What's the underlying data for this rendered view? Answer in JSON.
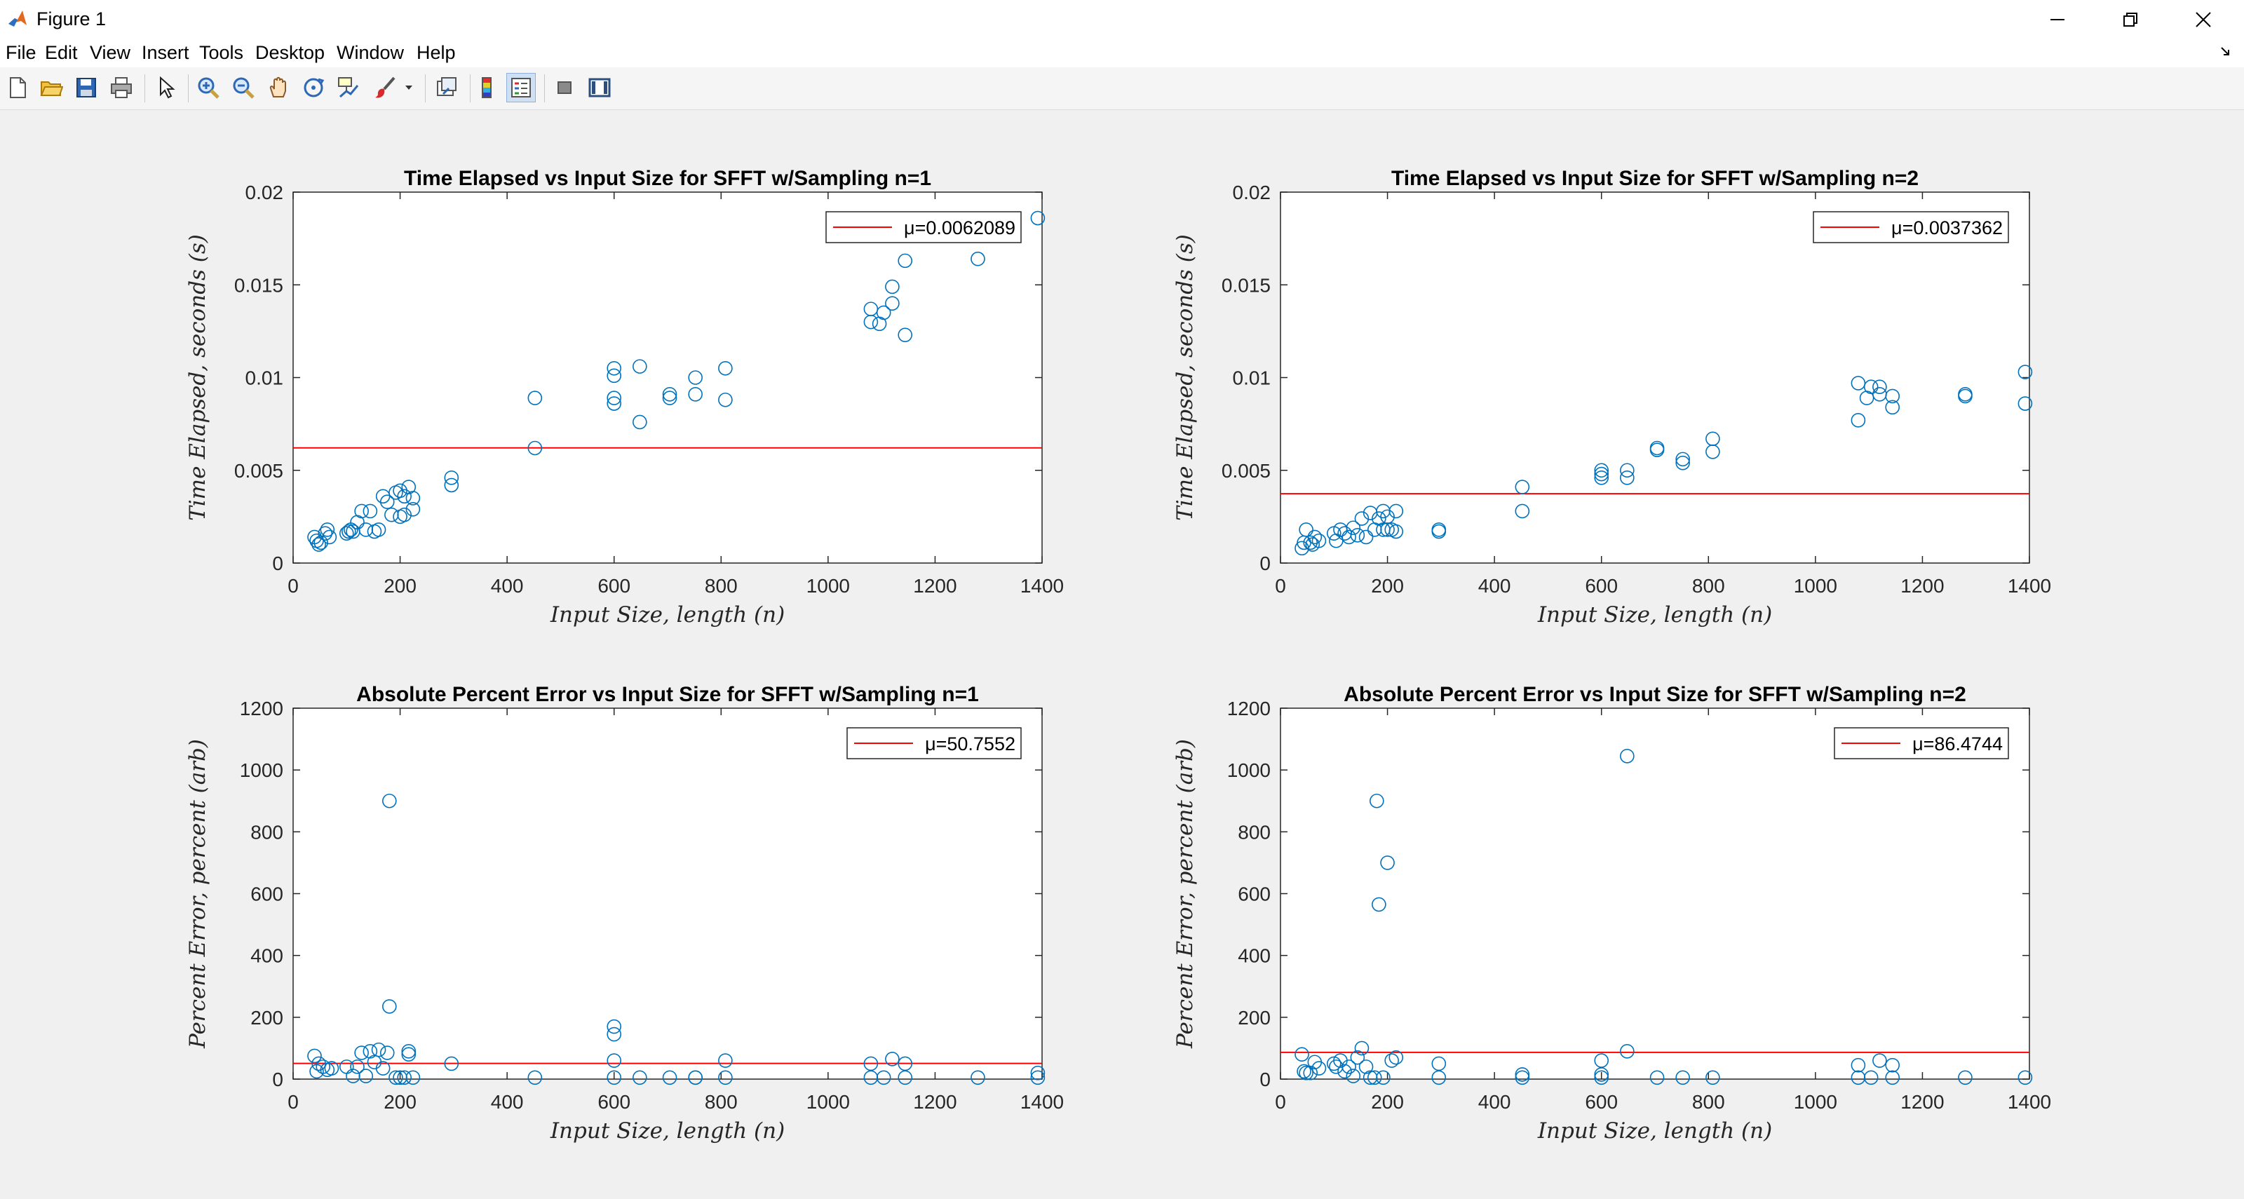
{
  "window": {
    "title": "Figure 1",
    "icon": "matlab-icon"
  },
  "window_controls": [
    "minimize-icon",
    "restore-icon",
    "close-icon"
  ],
  "menu": [
    "File",
    "Edit",
    "View",
    "Insert",
    "Tools",
    "Desktop",
    "Window",
    "Help"
  ],
  "toolbar": [
    "new-figure-icon",
    "open-file-icon",
    "save-icon",
    "print-icon",
    "edit-plot-icon",
    "zoom-in-icon",
    "zoom-out-icon",
    "pan-icon",
    "rotate-3d-icon",
    "data-cursor-icon",
    "brush-icon",
    "link-plot-icon",
    "colorbar-icon",
    "legend-icon",
    "hide-plot-tools-icon",
    "show-plot-tools-icon"
  ],
  "colors": {
    "marker": "#0072bd",
    "mean_line": "#ff0000",
    "figure_bg": "#f0f0f0"
  },
  "chart_data": [
    {
      "type": "scatter",
      "title": "Time Elapsed vs Input Size for SFFT w/Sampling n=1",
      "xlabel": "Input Size, length (n)",
      "ylabel": "Time Elapsed, seconds (s)",
      "xlim": [
        0,
        1400
      ],
      "ylim": [
        0,
        0.02
      ],
      "xticks": [
        0,
        200,
        400,
        600,
        800,
        1000,
        1200,
        1400
      ],
      "yticks": [
        0,
        0.005,
        0.01,
        0.015,
        0.02
      ],
      "ytick_labels": [
        "0",
        "0.005",
        "0.01",
        "0.015",
        "0.02"
      ],
      "mean": 0.0062089,
      "legend": {
        "label": "μ=0.0062089",
        "position": "top-right"
      },
      "x": [
        40,
        44,
        48,
        52,
        60,
        64,
        68,
        100,
        104,
        108,
        112,
        120,
        128,
        136,
        144,
        152,
        160,
        168,
        176,
        184,
        192,
        200,
        200,
        208,
        208,
        216,
        224,
        224,
        296,
        296,
        452,
        452,
        600,
        600,
        600,
        600,
        648,
        648,
        704,
        704,
        752,
        752,
        808,
        808,
        1080,
        1080,
        1096,
        1104,
        1120,
        1120,
        1144,
        1144,
        1280,
        1392
      ],
      "y": [
        0.0014,
        0.0012,
        0.001,
        0.0011,
        0.0016,
        0.0018,
        0.0014,
        0.0016,
        0.0017,
        0.0018,
        0.0017,
        0.0022,
        0.0028,
        0.0018,
        0.0028,
        0.0017,
        0.0018,
        0.0036,
        0.0033,
        0.0026,
        0.0038,
        0.0039,
        0.0025,
        0.0036,
        0.0026,
        0.0041,
        0.0035,
        0.0029,
        0.0046,
        0.0042,
        0.0089,
        0.0062,
        0.0105,
        0.0101,
        0.0089,
        0.0086,
        0.0106,
        0.0076,
        0.0091,
        0.0089,
        0.01,
        0.0091,
        0.0105,
        0.0088,
        0.0137,
        0.013,
        0.0129,
        0.0135,
        0.0149,
        0.014,
        0.0163,
        0.0123,
        0.0164,
        0.0186
      ]
    },
    {
      "type": "scatter",
      "title": "Time Elapsed vs Input Size for SFFT w/Sampling n=2",
      "xlabel": "Input Size, length (n)",
      "ylabel": "Time Elapsed, seconds (s)",
      "xlim": [
        0,
        1400
      ],
      "ylim": [
        0,
        0.02
      ],
      "xticks": [
        0,
        200,
        400,
        600,
        800,
        1000,
        1200,
        1400
      ],
      "yticks": [
        0,
        0.005,
        0.01,
        0.015,
        0.02
      ],
      "ytick_labels": [
        "0",
        "0.005",
        "0.01",
        "0.015",
        "0.02"
      ],
      "mean": 0.0037362,
      "legend": {
        "label": "μ=0.0037362",
        "position": "top-right"
      },
      "x": [
        40,
        44,
        48,
        56,
        60,
        64,
        72,
        100,
        104,
        112,
        120,
        128,
        136,
        144,
        152,
        160,
        168,
        176,
        184,
        192,
        192,
        200,
        200,
        208,
        216,
        216,
        296,
        296,
        452,
        452,
        600,
        600,
        600,
        648,
        648,
        704,
        704,
        752,
        752,
        808,
        808,
        1080,
        1080,
        1096,
        1104,
        1120,
        1120,
        1144,
        1144,
        1280,
        1280,
        1392,
        1392
      ],
      "y": [
        0.0008,
        0.0011,
        0.0018,
        0.0011,
        0.001,
        0.0014,
        0.0012,
        0.0016,
        0.0012,
        0.0018,
        0.0016,
        0.0014,
        0.0019,
        0.0015,
        0.0024,
        0.0014,
        0.0027,
        0.0018,
        0.0024,
        0.0028,
        0.0018,
        0.0025,
        0.0018,
        0.0018,
        0.0028,
        0.0017,
        0.0018,
        0.0017,
        0.0041,
        0.0028,
        0.005,
        0.0048,
        0.0046,
        0.005,
        0.0046,
        0.0062,
        0.0061,
        0.0056,
        0.0054,
        0.0067,
        0.006,
        0.0097,
        0.0077,
        0.0089,
        0.0095,
        0.0095,
        0.0091,
        0.009,
        0.0084,
        0.0091,
        0.009,
        0.0103,
        0.0086
      ]
    },
    {
      "type": "scatter",
      "title": "Absolute Percent Error vs Input Size for SFFT w/Sampling n=1",
      "xlabel": "Input Size, length (n)",
      "ylabel": "Percent Error, percent (arb)",
      "xlim": [
        0,
        1400
      ],
      "ylim": [
        0,
        1200
      ],
      "xticks": [
        0,
        200,
        400,
        600,
        800,
        1000,
        1200,
        1400
      ],
      "yticks": [
        0,
        200,
        400,
        600,
        800,
        1000,
        1200
      ],
      "ytick_labels": [
        "0",
        "200",
        "400",
        "600",
        "800",
        "1000",
        "1200"
      ],
      "mean": 50.7552,
      "legend": {
        "label": "μ=50.7552",
        "position": "top-right"
      },
      "x": [
        40,
        44,
        48,
        56,
        64,
        72,
        100,
        112,
        120,
        128,
        136,
        144,
        152,
        160,
        168,
        176,
        180,
        180,
        192,
        200,
        208,
        216,
        216,
        224,
        296,
        452,
        600,
        600,
        600,
        600,
        648,
        704,
        752,
        752,
        808,
        808,
        1080,
        1080,
        1104,
        1120,
        1144,
        1144,
        1280,
        1392,
        1392
      ],
      "y": [
        75,
        25,
        50,
        40,
        30,
        35,
        40,
        10,
        40,
        85,
        10,
        90,
        55,
        95,
        35,
        85,
        900,
        235,
        5,
        5,
        5,
        90,
        80,
        5,
        50,
        5,
        170,
        145,
        60,
        5,
        5,
        5,
        5,
        5,
        60,
        5,
        50,
        5,
        5,
        65,
        50,
        5,
        5,
        20,
        5
      ]
    },
    {
      "type": "scatter",
      "title": "Absolute Percent Error vs Input Size for SFFT w/Sampling n=2",
      "xlabel": "Input Size, length (n)",
      "ylabel": "Percent Error, percent (arb)",
      "xlim": [
        0,
        1400
      ],
      "ylim": [
        0,
        1200
      ],
      "xticks": [
        0,
        200,
        400,
        600,
        800,
        1000,
        1200,
        1400
      ],
      "yticks": [
        0,
        200,
        400,
        600,
        800,
        1000,
        1200
      ],
      "ytick_labels": [
        "0",
        "200",
        "400",
        "600",
        "800",
        "1000",
        "1200"
      ],
      "mean": 86.4744,
      "legend": {
        "label": "μ=86.4744",
        "position": "top-right"
      },
      "x": [
        40,
        44,
        48,
        56,
        64,
        72,
        100,
        104,
        112,
        120,
        128,
        136,
        144,
        152,
        160,
        168,
        176,
        180,
        184,
        192,
        200,
        208,
        216,
        296,
        296,
        452,
        452,
        600,
        600,
        600,
        648,
        648,
        704,
        752,
        808,
        1080,
        1080,
        1104,
        1120,
        1144,
        1144,
        1280,
        1392
      ],
      "y": [
        80,
        25,
        20,
        20,
        55,
        35,
        50,
        40,
        60,
        25,
        40,
        10,
        70,
        100,
        40,
        5,
        5,
        900,
        565,
        5,
        700,
        60,
        70,
        50,
        5,
        5,
        15,
        60,
        15,
        5,
        1045,
        90,
        5,
        5,
        5,
        45,
        5,
        5,
        60,
        45,
        5,
        5,
        5
      ]
    }
  ]
}
